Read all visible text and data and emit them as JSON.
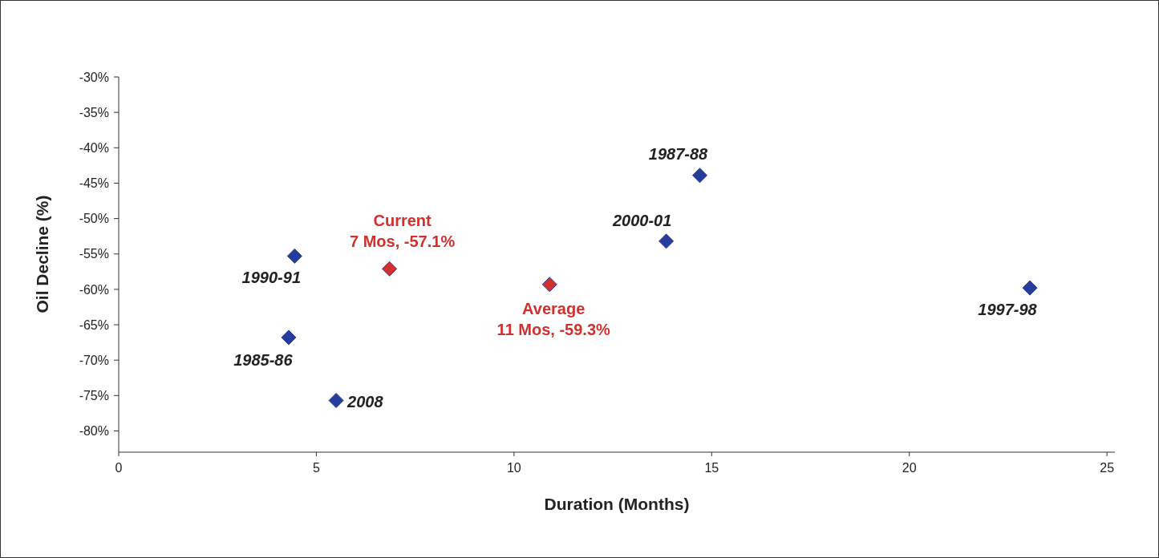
{
  "chart_data": {
    "type": "scatter",
    "xlabel": "Duration (Months)",
    "ylabel": "Oil Decline (%)",
    "xlim": [
      0,
      25.2
    ],
    "xticks": [
      0,
      5,
      10,
      15,
      20,
      25
    ],
    "ylim": [
      -83,
      -30
    ],
    "yticks": [
      {
        "value": -30,
        "label": "-30%"
      },
      {
        "value": -35,
        "label": "-35%"
      },
      {
        "value": -40,
        "label": "-40%"
      },
      {
        "value": -45,
        "label": "-45%"
      },
      {
        "value": -50,
        "label": "-50%"
      },
      {
        "value": -55,
        "label": "-55%"
      },
      {
        "value": -60,
        "label": "-60%"
      },
      {
        "value": -65,
        "label": "-65%"
      },
      {
        "value": -70,
        "label": "-70%"
      },
      {
        "value": -75,
        "label": "-75%"
      },
      {
        "value": -80,
        "label": "-80%"
      }
    ],
    "grid": false,
    "marker": "diamond",
    "series": [
      {
        "color": "#263d9c",
        "x": [
          4.3,
          4.45,
          5.5,
          13.85,
          14.7,
          23.05
        ],
        "values": [
          -66.8,
          -55.3,
          -75.7,
          -53.2,
          -43.9,
          -59.8
        ]
      },
      {
        "color": "#d0302e",
        "x": [
          6.85,
          10.9
        ],
        "values": [
          -57.1,
          -59.3
        ]
      }
    ],
    "annotations": [
      {
        "text": "1985-86",
        "x": 4.3,
        "y": -66.8
      },
      {
        "text": "1990-91",
        "x": 4.45,
        "y": -55.3
      },
      {
        "text": "2008",
        "x": 5.5,
        "y": -75.7
      },
      {
        "text": "2000-01",
        "x": 13.85,
        "y": -53.2
      },
      {
        "text": "1987-88",
        "x": 14.7,
        "y": -43.9
      },
      {
        "text": "1997-98",
        "x": 23.05,
        "y": -59.8
      },
      {
        "text": "Current\n7 Mos, -57.1%",
        "x": 6.85,
        "y": -57.1
      },
      {
        "text": "Average\n11 Mos, -59.3%",
        "x": 10.9,
        "y": -59.3
      }
    ]
  }
}
